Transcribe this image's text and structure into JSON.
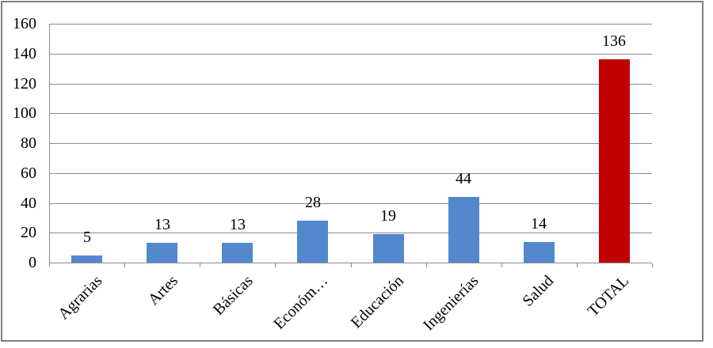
{
  "chart_data": {
    "type": "bar",
    "title": "",
    "xlabel": "",
    "ylabel": "",
    "categories": [
      "Agrarias",
      "Artes",
      "Básicas",
      "Económ…",
      "Educación",
      "Ingenierías",
      "Salud",
      "TOTAL"
    ],
    "values": [
      5,
      13,
      13,
      28,
      19,
      44,
      14,
      136
    ],
    "data_labels": [
      "5",
      "13",
      "13",
      "28",
      "19",
      "44",
      "14",
      "136"
    ],
    "bar_colors": [
      "#5388cd",
      "#5388cd",
      "#5388cd",
      "#5388cd",
      "#5388cd",
      "#5388cd",
      "#5388cd",
      "#c00000"
    ],
    "ylim": [
      0,
      160
    ],
    "yticks": [
      0,
      20,
      40,
      60,
      80,
      100,
      120,
      140,
      160
    ],
    "ytick_labels": [
      "0",
      "20",
      "40",
      "60",
      "80",
      "100",
      "120",
      "140",
      "160"
    ],
    "grid": "horizontal",
    "legend": "none",
    "colors": {
      "bar_default": "#5388cd",
      "bar_total": "#c00000",
      "gridline": "#8c8c8c",
      "axis": "#8c8c8c",
      "text": "#000000",
      "frame_border": "#7f7f7f",
      "background": "#ffffff"
    }
  }
}
